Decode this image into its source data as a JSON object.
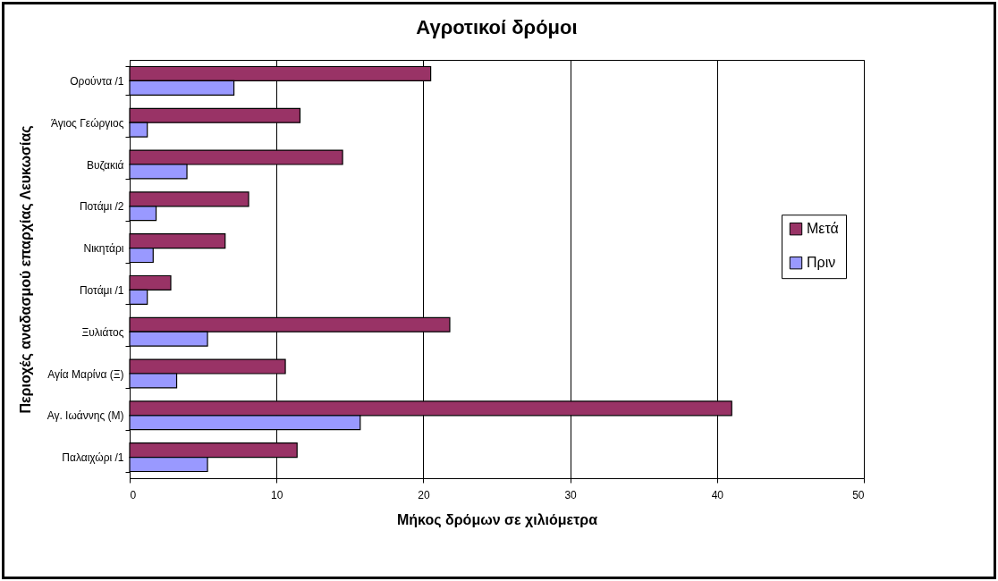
{
  "chart_data": {
    "type": "bar",
    "orientation": "horizontal",
    "title": "Αγροτικοί δρόμοι",
    "xlabel": "Μήκος δρόμων σε χιλιόμετρα",
    "ylabel": "Περιοχές αναδασμού επαρχίας Λευκωσίας",
    "categories": [
      "Ορούντα /1",
      "Άγιος Γεώργιος",
      "Βυζακιά",
      "Ποτάμι /2",
      "Νικητάρι",
      "Ποτάμι /1",
      "Ξυλιάτος",
      "Αγία Μαρίνα (Ξ)",
      "Αγ. Ιωάννης (Μ)",
      "Παλαιχώρι /1"
    ],
    "series": [
      {
        "name": "Μετά",
        "color": "#993366",
        "values": [
          20.5,
          11.6,
          14.5,
          8.1,
          6.5,
          2.8,
          21.8,
          10.6,
          41.0,
          11.4
        ]
      },
      {
        "name": "Πριν",
        "color": "#9999ff",
        "values": [
          7.1,
          1.2,
          3.9,
          1.8,
          1.6,
          1.2,
          5.3,
          3.2,
          15.7,
          5.3
        ]
      }
    ],
    "xlim": [
      0,
      50
    ],
    "xticks": [
      0,
      10,
      20,
      30,
      40,
      50
    ],
    "grid": "x",
    "legend": "right"
  }
}
